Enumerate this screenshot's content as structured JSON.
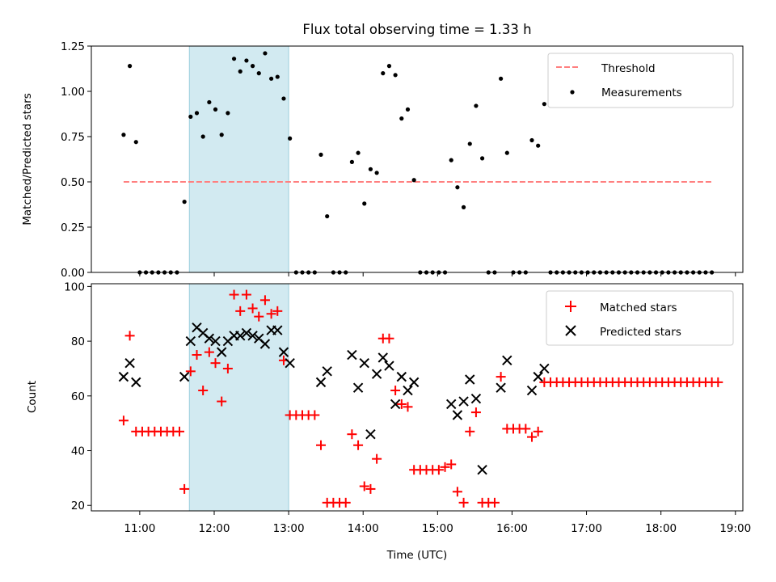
{
  "chart_data": [
    {
      "type": "scatter",
      "title": "Flux total observing time = 1.33 h",
      "ylabel": "Matched/Predicted stars",
      "ylim": [
        0,
        1.25
      ],
      "yticks": [
        "0.00",
        "0.25",
        "0.50",
        "0.75",
        "1.00",
        "1.25"
      ],
      "xlim_hours": [
        10.35,
        19.1
      ],
      "highlight_span": [
        "11:40",
        "13:00"
      ],
      "legend_position": "upper-right",
      "threshold": {
        "name": "Threshold",
        "value": 0.5,
        "x_range": [
          "10:47",
          "18:42"
        ],
        "color": "#ff7f7f",
        "style": "dashed"
      },
      "series": [
        {
          "name": "Measurements",
          "marker": "dot",
          "color": "#000000",
          "points": [
            [
              "10:47",
              0.76
            ],
            [
              "10:52",
              1.14
            ],
            [
              "10:57",
              0.72
            ],
            [
              "11:00",
              0.0
            ],
            [
              "11:05",
              0.0
            ],
            [
              "11:10",
              0.0
            ],
            [
              "11:15",
              0.0
            ],
            [
              "11:20",
              0.0
            ],
            [
              "11:25",
              0.0
            ],
            [
              "11:30",
              0.0
            ],
            [
              "11:36",
              0.39
            ],
            [
              "11:41",
              0.86
            ],
            [
              "11:46",
              0.88
            ],
            [
              "11:51",
              0.75
            ],
            [
              "11:56",
              0.94
            ],
            [
              "12:01",
              0.9
            ],
            [
              "12:06",
              0.76
            ],
            [
              "12:11",
              0.88
            ],
            [
              "12:16",
              1.18
            ],
            [
              "12:21",
              1.11
            ],
            [
              "12:26",
              1.17
            ],
            [
              "12:31",
              1.14
            ],
            [
              "12:36",
              1.1
            ],
            [
              "12:41",
              1.21
            ],
            [
              "12:46",
              1.07
            ],
            [
              "12:51",
              1.08
            ],
            [
              "12:56",
              0.96
            ],
            [
              "13:01",
              0.74
            ],
            [
              "13:06",
              0.0
            ],
            [
              "13:11",
              0.0
            ],
            [
              "13:16",
              0.0
            ],
            [
              "13:21",
              0.0
            ],
            [
              "13:26",
              0.65
            ],
            [
              "13:31",
              0.31
            ],
            [
              "13:36",
              0.0
            ],
            [
              "13:41",
              0.0
            ],
            [
              "13:46",
              0.0
            ],
            [
              "13:51",
              0.61
            ],
            [
              "13:56",
              0.66
            ],
            [
              "14:01",
              0.38
            ],
            [
              "14:06",
              0.57
            ],
            [
              "14:11",
              0.55
            ],
            [
              "14:16",
              1.1
            ],
            [
              "14:21",
              1.14
            ],
            [
              "14:26",
              1.09
            ],
            [
              "14:31",
              0.85
            ],
            [
              "14:36",
              0.9
            ],
            [
              "14:41",
              0.51
            ],
            [
              "14:46",
              0.0
            ],
            [
              "14:51",
              0.0
            ],
            [
              "14:56",
              0.0
            ],
            [
              "15:01",
              0.0
            ],
            [
              "15:06",
              0.0
            ],
            [
              "15:11",
              0.62
            ],
            [
              "15:16",
              0.47
            ],
            [
              "15:21",
              0.36
            ],
            [
              "15:26",
              0.71
            ],
            [
              "15:31",
              0.92
            ],
            [
              "15:36",
              0.63
            ],
            [
              "15:41",
              0.0
            ],
            [
              "15:46",
              0.0
            ],
            [
              "15:51",
              1.07
            ],
            [
              "15:56",
              0.66
            ],
            [
              "16:01",
              0.0
            ],
            [
              "16:06",
              0.0
            ],
            [
              "16:11",
              0.0
            ],
            [
              "16:16",
              0.73
            ],
            [
              "16:21",
              0.7
            ],
            [
              "16:26",
              0.93
            ],
            [
              "16:31",
              0.0
            ],
            [
              "16:36",
              0.0
            ],
            [
              "16:41",
              0.0
            ],
            [
              "16:46",
              0.0
            ],
            [
              "16:51",
              0.0
            ],
            [
              "16:56",
              0.0
            ],
            [
              "17:01",
              0.0
            ],
            [
              "17:06",
              0.0
            ],
            [
              "17:11",
              0.0
            ],
            [
              "17:16",
              0.0
            ],
            [
              "17:21",
              0.0
            ],
            [
              "17:26",
              0.0
            ],
            [
              "17:31",
              0.0
            ],
            [
              "17:36",
              0.0
            ],
            [
              "17:41",
              0.0
            ],
            [
              "17:46",
              0.0
            ],
            [
              "17:51",
              0.0
            ],
            [
              "17:56",
              0.0
            ],
            [
              "18:01",
              0.0
            ],
            [
              "18:06",
              0.0
            ],
            [
              "18:11",
              0.0
            ],
            [
              "18:16",
              0.0
            ],
            [
              "18:21",
              0.0
            ],
            [
              "18:26",
              0.0
            ],
            [
              "18:31",
              0.0
            ],
            [
              "18:36",
              0.0
            ],
            [
              "18:41",
              0.0
            ]
          ]
        }
      ]
    },
    {
      "type": "scatter",
      "xlabel": "Time (UTC)",
      "ylabel": "Count",
      "ylim": [
        18,
        101
      ],
      "yticks": [
        "20",
        "40",
        "60",
        "80",
        "100"
      ],
      "xticks": [
        "11:00",
        "12:00",
        "13:00",
        "14:00",
        "15:00",
        "16:00",
        "17:00",
        "18:00",
        "19:00"
      ],
      "xlim_hours": [
        10.35,
        19.1
      ],
      "highlight_span": [
        "11:40",
        "13:00"
      ],
      "legend_position": "upper-right",
      "series": [
        {
          "name": "Matched stars",
          "marker": "plus",
          "color": "#ff0000",
          "points": [
            [
              "10:47",
              51
            ],
            [
              "10:52",
              82
            ],
            [
              "10:57",
              47
            ],
            [
              "11:02",
              47
            ],
            [
              "11:07",
              47
            ],
            [
              "11:12",
              47
            ],
            [
              "11:17",
              47
            ],
            [
              "11:22",
              47
            ],
            [
              "11:27",
              47
            ],
            [
              "11:32",
              47
            ],
            [
              "11:36",
              26
            ],
            [
              "11:41",
              69
            ],
            [
              "11:46",
              75
            ],
            [
              "11:51",
              62
            ],
            [
              "11:56",
              76
            ],
            [
              "12:01",
              72
            ],
            [
              "12:06",
              58
            ],
            [
              "12:11",
              70
            ],
            [
              "12:16",
              97
            ],
            [
              "12:21",
              91
            ],
            [
              "12:26",
              97
            ],
            [
              "12:31",
              92
            ],
            [
              "12:36",
              89
            ],
            [
              "12:41",
              95
            ],
            [
              "12:46",
              90
            ],
            [
              "12:51",
              91
            ],
            [
              "12:56",
              73
            ],
            [
              "13:01",
              53
            ],
            [
              "13:06",
              53
            ],
            [
              "13:11",
              53
            ],
            [
              "13:16",
              53
            ],
            [
              "13:21",
              53
            ],
            [
              "13:26",
              42
            ],
            [
              "13:31",
              21
            ],
            [
              "13:36",
              21
            ],
            [
              "13:41",
              21
            ],
            [
              "13:46",
              21
            ],
            [
              "13:51",
              46
            ],
            [
              "13:56",
              42
            ],
            [
              "14:01",
              27
            ],
            [
              "14:06",
              26
            ],
            [
              "14:11",
              37
            ],
            [
              "14:16",
              81
            ],
            [
              "14:21",
              81
            ],
            [
              "14:26",
              62
            ],
            [
              "14:31",
              57
            ],
            [
              "14:36",
              56
            ],
            [
              "14:41",
              33
            ],
            [
              "14:46",
              33
            ],
            [
              "14:51",
              33
            ],
            [
              "14:56",
              33
            ],
            [
              "15:01",
              33
            ],
            [
              "15:06",
              34
            ],
            [
              "15:11",
              35
            ],
            [
              "15:16",
              25
            ],
            [
              "15:21",
              21
            ],
            [
              "15:26",
              47
            ],
            [
              "15:31",
              54
            ],
            [
              "15:36",
              21
            ],
            [
              "15:41",
              21
            ],
            [
              "15:46",
              21
            ],
            [
              "15:51",
              67
            ],
            [
              "15:56",
              48
            ],
            [
              "16:01",
              48
            ],
            [
              "16:06",
              48
            ],
            [
              "16:11",
              48
            ],
            [
              "16:16",
              45
            ],
            [
              "16:21",
              47
            ],
            [
              "16:26",
              65
            ],
            [
              "16:31",
              65
            ],
            [
              "16:36",
              65
            ],
            [
              "16:41",
              65
            ],
            [
              "16:46",
              65
            ],
            [
              "16:51",
              65
            ],
            [
              "16:56",
              65
            ],
            [
              "17:01",
              65
            ],
            [
              "17:06",
              65
            ],
            [
              "17:11",
              65
            ],
            [
              "17:16",
              65
            ],
            [
              "17:21",
              65
            ],
            [
              "17:26",
              65
            ],
            [
              "17:31",
              65
            ],
            [
              "17:36",
              65
            ],
            [
              "17:41",
              65
            ],
            [
              "17:46",
              65
            ],
            [
              "17:51",
              65
            ],
            [
              "17:56",
              65
            ],
            [
              "18:01",
              65
            ],
            [
              "18:06",
              65
            ],
            [
              "18:11",
              65
            ],
            [
              "18:16",
              65
            ],
            [
              "18:21",
              65
            ],
            [
              "18:26",
              65
            ],
            [
              "18:31",
              65
            ],
            [
              "18:36",
              65
            ],
            [
              "18:41",
              65
            ],
            [
              "18:46",
              65
            ]
          ]
        },
        {
          "name": "Predicted stars",
          "marker": "x",
          "color": "#000000",
          "points": [
            [
              "10:47",
              67
            ],
            [
              "10:52",
              72
            ],
            [
              "10:57",
              65
            ],
            [
              "11:36",
              67
            ],
            [
              "11:41",
              80
            ],
            [
              "11:46",
              85
            ],
            [
              "11:51",
              83
            ],
            [
              "11:56",
              81
            ],
            [
              "12:01",
              80
            ],
            [
              "12:06",
              76
            ],
            [
              "12:11",
              80
            ],
            [
              "12:16",
              82
            ],
            [
              "12:21",
              82
            ],
            [
              "12:26",
              83
            ],
            [
              "12:31",
              82
            ],
            [
              "12:36",
              81
            ],
            [
              "12:41",
              79
            ],
            [
              "12:46",
              84
            ],
            [
              "12:51",
              84
            ],
            [
              "12:56",
              76
            ],
            [
              "13:01",
              72
            ],
            [
              "13:26",
              65
            ],
            [
              "13:31",
              69
            ],
            [
              "13:51",
              75
            ],
            [
              "13:56",
              63
            ],
            [
              "14:01",
              72
            ],
            [
              "14:06",
              46
            ],
            [
              "14:11",
              68
            ],
            [
              "14:16",
              74
            ],
            [
              "14:21",
              71
            ],
            [
              "14:26",
              57
            ],
            [
              "14:31",
              67
            ],
            [
              "14:36",
              62
            ],
            [
              "14:41",
              65
            ],
            [
              "15:11",
              57
            ],
            [
              "15:16",
              53
            ],
            [
              "15:21",
              58
            ],
            [
              "15:26",
              66
            ],
            [
              "15:31",
              59
            ],
            [
              "15:36",
              33
            ],
            [
              "15:51",
              63
            ],
            [
              "15:56",
              73
            ],
            [
              "16:16",
              62
            ],
            [
              "16:21",
              67
            ],
            [
              "16:26",
              70
            ]
          ]
        }
      ]
    }
  ]
}
